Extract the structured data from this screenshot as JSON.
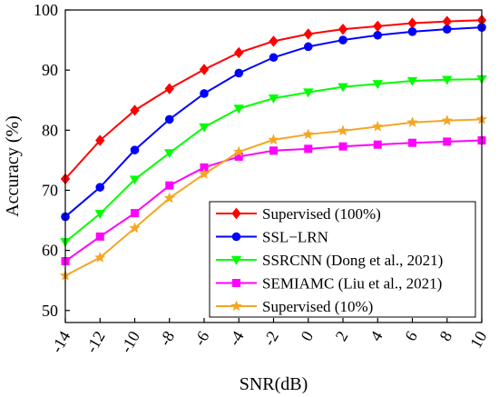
{
  "chart_data": {
    "type": "line",
    "title": "",
    "xlabel": "SNR(dB)",
    "ylabel": "Accuracy (%)",
    "x": [
      -14,
      -12,
      -10,
      -8,
      -6,
      -4,
      -2,
      0,
      2,
      4,
      6,
      8,
      10
    ],
    "xticks": [
      "-14",
      "-12",
      "-10",
      "-8",
      "-6",
      "-4",
      "-2",
      "0",
      "2",
      "4",
      "6",
      "8",
      "10"
    ],
    "xlim": [
      -14,
      10
    ],
    "ylim": [
      48,
      100
    ],
    "yticks": [
      "50",
      "60",
      "70",
      "80",
      "90",
      "100"
    ],
    "grid": false,
    "legend_position": "bottom-right",
    "series": [
      {
        "name": "Supervised (100%)",
        "color": "#ff0000",
        "marker": "diamond",
        "values": [
          71.9,
          78.3,
          83.3,
          86.9,
          90.1,
          92.9,
          94.8,
          96.0,
          96.8,
          97.3,
          97.8,
          98.1,
          98.3
        ]
      },
      {
        "name": "SSL−LRN",
        "color": "#0000ff",
        "marker": "circle",
        "values": [
          65.6,
          70.5,
          76.7,
          81.8,
          86.1,
          89.5,
          92.1,
          93.9,
          95.0,
          95.8,
          96.4,
          96.8,
          97.1
        ]
      },
      {
        "name": "SSRCNN (Dong et al., 2021)",
        "color": "#00ff00",
        "marker": "triangle-down",
        "values": [
          61.4,
          66.1,
          71.8,
          76.2,
          80.5,
          83.6,
          85.3,
          86.3,
          87.2,
          87.7,
          88.2,
          88.4,
          88.5
        ]
      },
      {
        "name": "SEMIAMC (Liu et al., 2021)",
        "color": "#ff00ff",
        "marker": "square",
        "values": [
          58.2,
          62.3,
          66.2,
          70.8,
          73.8,
          75.6,
          76.6,
          76.9,
          77.3,
          77.6,
          77.9,
          78.1,
          78.3
        ]
      },
      {
        "name": "Supervised (10%)",
        "color": "#f5a623",
        "marker": "star",
        "values": [
          55.8,
          58.8,
          63.7,
          68.7,
          72.7,
          76.4,
          78.4,
          79.3,
          79.9,
          80.6,
          81.3,
          81.6,
          81.8
        ]
      }
    ]
  }
}
